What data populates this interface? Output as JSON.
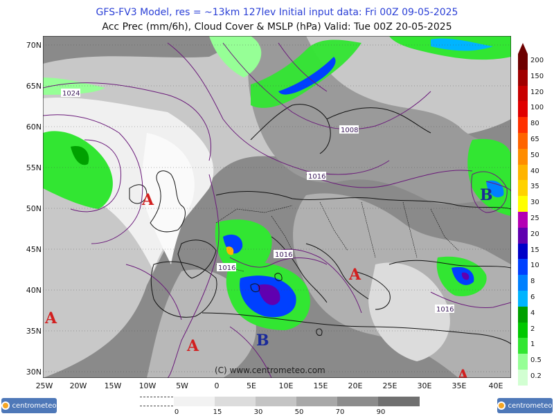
{
  "header": {
    "line1": "GFS-FV3 Model, res = ~13km 127lev    Initial input data: Fri 00Z 09-05-2025",
    "line2": "Acc Prec (mm/6h), Cloud Cover & MSLP (hPa)  Valid: Tue 00Z 20-05-2025"
  },
  "map": {
    "lat_labels": [
      "70N",
      "65N",
      "60N",
      "55N",
      "50N",
      "45N",
      "40N",
      "35N",
      "30N"
    ],
    "lon_labels": [
      "25W",
      "20W",
      "15W",
      "10W",
      "5W",
      "0",
      "5E",
      "10E",
      "15E",
      "20E",
      "25E",
      "30E",
      "35E",
      "40E"
    ],
    "isobar_labels": [
      "1024",
      "1008",
      "1016",
      "1016",
      "1016",
      "1016"
    ],
    "pressure_centers": [
      "A",
      "A",
      "A",
      "A",
      "A",
      "B",
      "B"
    ],
    "copyright": "(C) www.centrometeo.com"
  },
  "precip_legend": {
    "labels": [
      "200",
      "150",
      "120",
      "100",
      "80",
      "65",
      "50",
      "40",
      "35",
      "30",
      "25",
      "20",
      "15",
      "10",
      "8",
      "6",
      "4",
      "2",
      "1",
      "0.5",
      "0.2"
    ],
    "colors": [
      "#6e0000",
      "#a00000",
      "#c80000",
      "#e00000",
      "#ff3000",
      "#ff6400",
      "#ff8c00",
      "#ffb400",
      "#ffd200",
      "#ffff00",
      "#b400b4",
      "#6000b0",
      "#0000c8",
      "#0040ff",
      "#0080ff",
      "#00b4ff",
      "#00a000",
      "#00c800",
      "#32e632",
      "#96ff96",
      "#d2ffd2"
    ]
  },
  "cloud_legend": {
    "labels": [
      "0",
      "15",
      "30",
      "50",
      "70",
      "90"
    ],
    "colors": [
      "#f2f2f2",
      "#dcdcdc",
      "#c4c4c4",
      "#a8a8a8",
      "#8c8c8c",
      "#707070"
    ]
  },
  "logos": {
    "left": "centrometeo",
    "right": "centrometeo"
  }
}
